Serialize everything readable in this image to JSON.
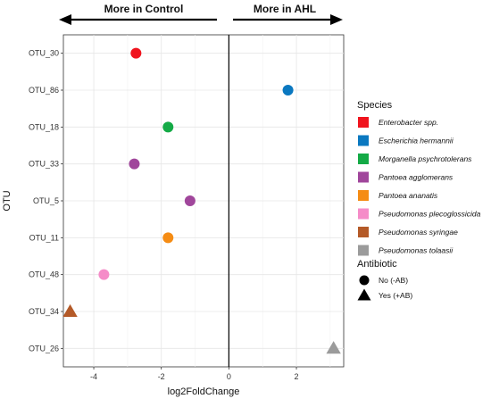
{
  "chart_data": {
    "type": "scatter",
    "orientation": "horizontal",
    "xlabel": "log2FoldChange",
    "ylabel": "OTU",
    "xlim": [
      -4.9,
      3.4
    ],
    "x_ticks": [
      -4,
      -2,
      0,
      2
    ],
    "grid": true,
    "reference_line_x": 0,
    "categories": [
      "OTU_30",
      "OTU_86",
      "OTU_18",
      "OTU_33",
      "OTU_5",
      "OTU_11",
      "OTU_48",
      "OTU_34",
      "OTU_26"
    ],
    "points": [
      {
        "otu": "OTU_30",
        "x": -2.75,
        "species": "Enterobacter spp.",
        "antibiotic": "No (-AB)"
      },
      {
        "otu": "OTU_86",
        "x": 1.75,
        "species": "Escherichia hermannii",
        "antibiotic": "No (-AB)"
      },
      {
        "otu": "OTU_18",
        "x": -1.8,
        "species": "Morganella psychrotolerans",
        "antibiotic": "No (-AB)"
      },
      {
        "otu": "OTU_33",
        "x": -2.8,
        "species": "Pantoea agglomerans",
        "antibiotic": "No (-AB)"
      },
      {
        "otu": "OTU_5",
        "x": -1.15,
        "species": "Pantoea agglomerans",
        "antibiotic": "No (-AB)"
      },
      {
        "otu": "OTU_11",
        "x": -1.8,
        "species": "Pantoea ananatis",
        "antibiotic": "No (-AB)"
      },
      {
        "otu": "OTU_48",
        "x": -3.7,
        "species": "Pseudomonas plecoglossicida",
        "antibiotic": "No (-AB)"
      },
      {
        "otu": "OTU_34",
        "x": -4.7,
        "species": "Pseudomonas syringae",
        "antibiotic": "Yes (+AB)"
      },
      {
        "otu": "OTU_26",
        "x": 3.1,
        "species": "Pseudomonas tolaasii",
        "antibiotic": "Yes (+AB)"
      }
    ],
    "banners": {
      "left": "More in Control",
      "right": "More in AHL"
    },
    "legend": {
      "placement": "right",
      "species_title": "Species",
      "species": [
        {
          "name": "Enterobacter spp.",
          "color": "#f0141e"
        },
        {
          "name": "Escherichia hermannii",
          "color": "#0a78c0"
        },
        {
          "name": "Morganella psychrotolerans",
          "color": "#14aa46"
        },
        {
          "name": "Pantoea agglomerans",
          "color": "#a0469b"
        },
        {
          "name": "Pantoea ananatis",
          "color": "#f58c14"
        },
        {
          "name": "Pseudomonas plecoglossicida",
          "color": "#f58cc8"
        },
        {
          "name": "Pseudomonas syringae",
          "color": "#b45a28"
        },
        {
          "name": "Pseudomonas tolaasii",
          "color": "#9b9b9b"
        }
      ],
      "antibiotic_title": "Antibiotic",
      "antibiotic": [
        {
          "name": "No (-AB)",
          "shape": "circle"
        },
        {
          "name": "Yes (+AB)",
          "shape": "triangle"
        }
      ]
    }
  }
}
